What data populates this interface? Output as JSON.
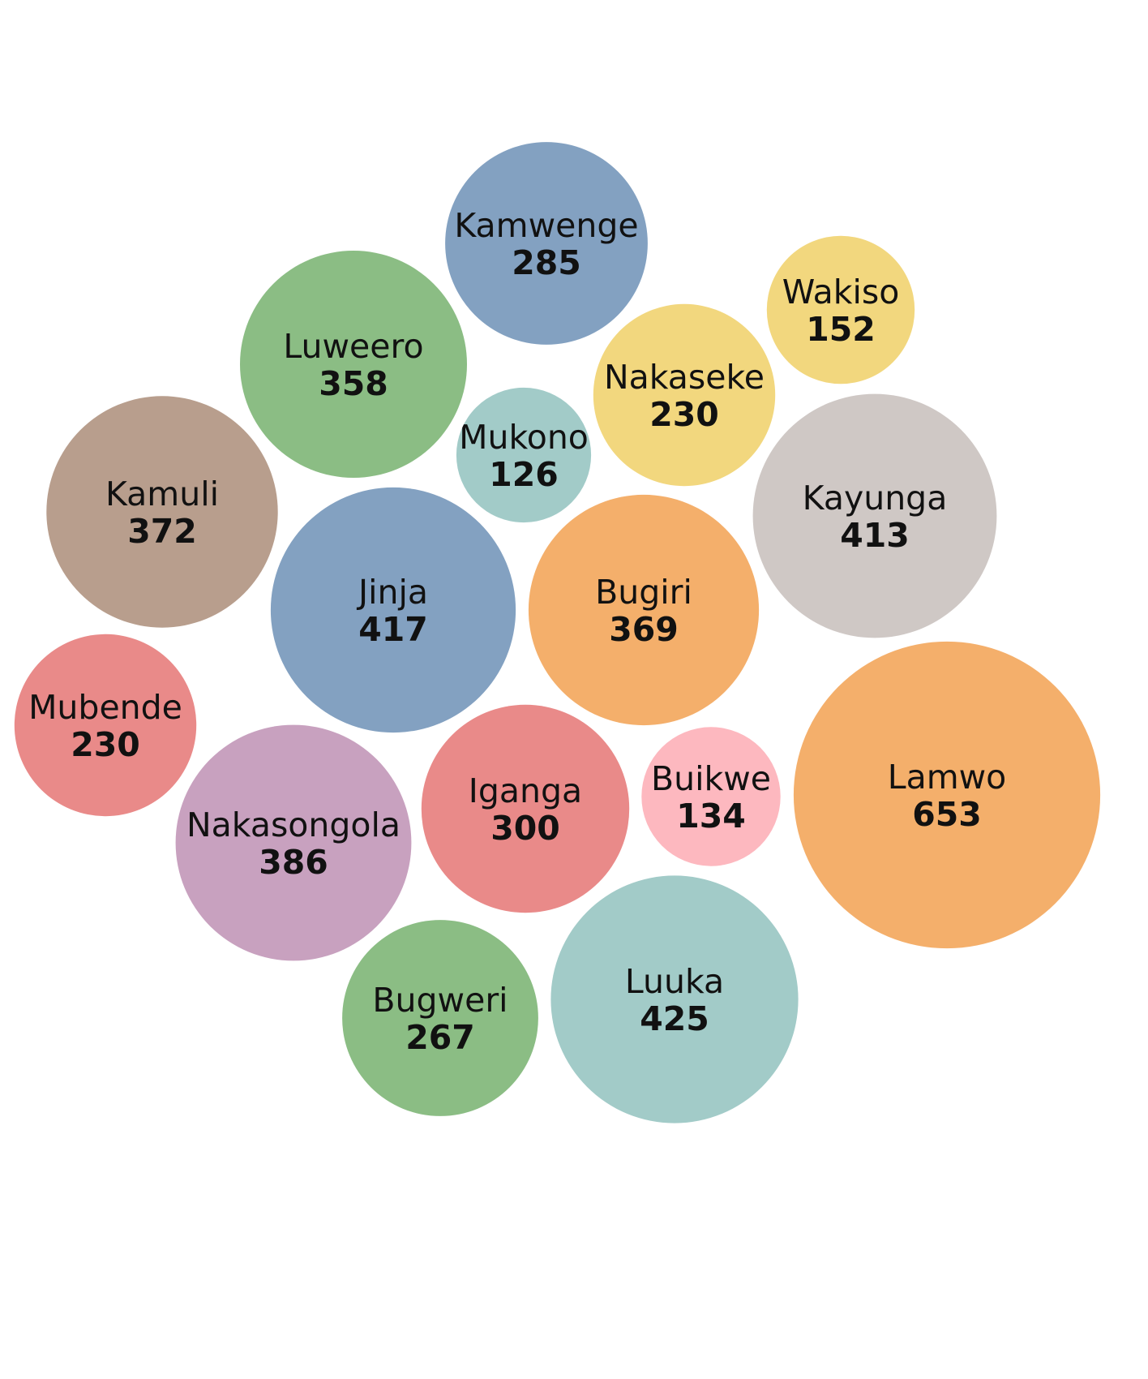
{
  "chart_data": {
    "type": "bubble",
    "title": "",
    "items": [
      {
        "name": "Kamwenge",
        "value": 285,
        "color": "#83a1c1"
      },
      {
        "name": "Wakiso",
        "value": 152,
        "color": "#f2d77e"
      },
      {
        "name": "Luweero",
        "value": 358,
        "color": "#8bbd84"
      },
      {
        "name": "Nakaseke",
        "value": 230,
        "color": "#f2d77e"
      },
      {
        "name": "Mukono",
        "value": 126,
        "color": "#a2cbc8"
      },
      {
        "name": "Kamuli",
        "value": 372,
        "color": "#b89e8d"
      },
      {
        "name": "Kayunga",
        "value": 413,
        "color": "#cfc8c5"
      },
      {
        "name": "Jinja",
        "value": 417,
        "color": "#83a1c1"
      },
      {
        "name": "Bugiri",
        "value": 369,
        "color": "#f4af6b"
      },
      {
        "name": "Mubende",
        "value": 230,
        "color": "#e98a89"
      },
      {
        "name": "Lamwo",
        "value": 653,
        "color": "#f4af6b"
      },
      {
        "name": "Buikwe",
        "value": 134,
        "color": "#fdb8bf"
      },
      {
        "name": "Iganga",
        "value": 300,
        "color": "#e98a89"
      },
      {
        "name": "Nakasongola",
        "value": 386,
        "color": "#c8a1bf"
      },
      {
        "name": "Luuka",
        "value": 425,
        "color": "#a2cbc8"
      },
      {
        "name": "Bugweri",
        "value": 267,
        "color": "#8bbd84"
      }
    ]
  }
}
